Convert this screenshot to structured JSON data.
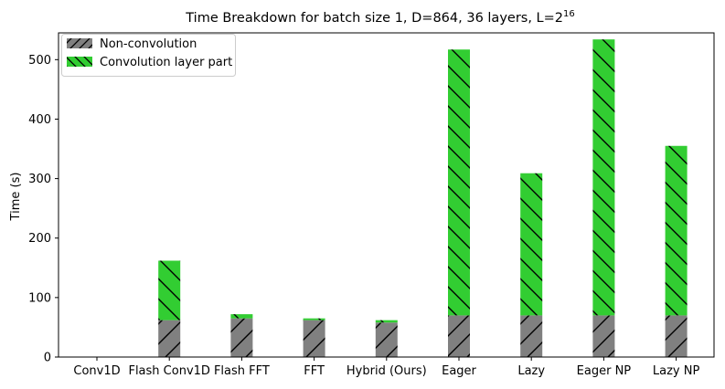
{
  "chart_data": {
    "type": "bar",
    "stacked": true,
    "title": "Time Breakdown for batch size 1, D=864, 36 layers, L=2",
    "title_superscript": "16",
    "xlabel": "",
    "ylabel": "Time (s)",
    "ylim": [
      0,
      545
    ],
    "yticks": [
      0,
      100,
      200,
      300,
      400,
      500
    ],
    "grid": false,
    "legend_position": "top-left",
    "categories": [
      "Conv1D",
      "Flash Conv1D",
      "Flash FFT",
      "FFT",
      "Hybrid (Ours)",
      "Eager",
      "Lazy",
      "Eager NP",
      "Lazy NP"
    ],
    "series": [
      {
        "name": "Non-convolution",
        "color": "#808080",
        "hatch": "forward-diagonal",
        "values": [
          0,
          62,
          65,
          62,
          58,
          70,
          70,
          70,
          70
        ]
      },
      {
        "name": "Convolution layer part",
        "color": "#32cd32",
        "hatch": "back-diagonal",
        "values": [
          0,
          100,
          7,
          3,
          4,
          447,
          239,
          464,
          285
        ]
      }
    ]
  }
}
